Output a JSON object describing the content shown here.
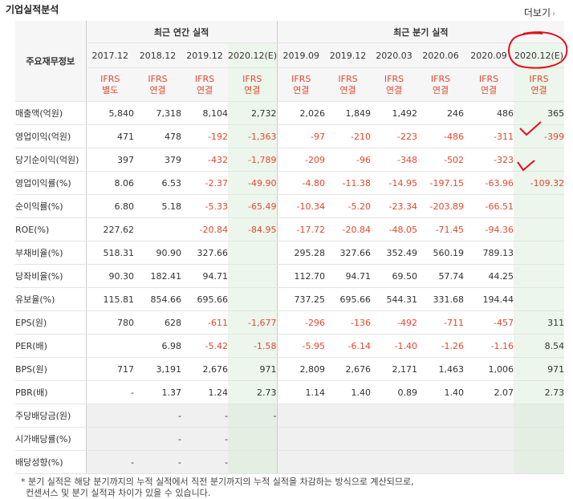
{
  "header": {
    "title": "기업실적분석",
    "more_label": "더보기"
  },
  "table": {
    "row_header": "주요재무정보",
    "group_annual": "최근 연간 실적",
    "group_quarter": "최근 분기 실적",
    "periods": [
      "2017.12",
      "2018.12",
      "2019.12",
      "2020.12(E)",
      "2019.09",
      "2019.12",
      "2020.03",
      "2020.06",
      "2020.09",
      "2020.12(E)"
    ],
    "standards": [
      [
        "IFRS",
        "별도"
      ],
      [
        "IFRS",
        "연결"
      ],
      [
        "IFRS",
        "연결"
      ],
      [
        "IFRS",
        "연결"
      ],
      [
        "IFRS",
        "연결"
      ],
      [
        "IFRS",
        "연결"
      ],
      [
        "IFRS",
        "연결"
      ],
      [
        "IFRS",
        "연결"
      ],
      [
        "IFRS",
        "연결"
      ],
      [
        "IFRS",
        "연결"
      ]
    ],
    "rows": [
      {
        "label": "매출액(억원)",
        "values": [
          "5,840",
          "7,318",
          "8,104",
          "2,732",
          "2,026",
          "1,849",
          "1,492",
          "246",
          "486",
          "365"
        ]
      },
      {
        "label": "영업이익(억원)",
        "values": [
          "471",
          "478",
          "-192",
          "-1,363",
          "-97",
          "-210",
          "-223",
          "-486",
          "-311",
          "-399"
        ]
      },
      {
        "label": "당기순이익(억원)",
        "values": [
          "397",
          "379",
          "-432",
          "-1,789",
          "-209",
          "-96",
          "-348",
          "-502",
          "-323",
          ""
        ]
      },
      {
        "label": "영업이익률(%)",
        "values": [
          "8.06",
          "6.53",
          "-2.37",
          "-49.90",
          "-4.80",
          "-11.38",
          "-14.95",
          "-197.15",
          "-63.96",
          "-109.32"
        ]
      },
      {
        "label": "순이익률(%)",
        "values": [
          "6.80",
          "5.18",
          "-5.33",
          "-65.49",
          "-10.34",
          "-5.20",
          "-23.34",
          "-203.89",
          "-66.51",
          ""
        ]
      },
      {
        "label": "ROE(%)",
        "values": [
          "227.62",
          "",
          "-20.84",
          "-84.95",
          "-17.72",
          "-20.84",
          "-48.05",
          "-71.45",
          "-94.36",
          ""
        ]
      },
      {
        "label": "부채비율(%)",
        "values": [
          "518.31",
          "90.90",
          "327.66",
          "",
          "295.28",
          "327.66",
          "352.49",
          "560.19",
          "789.13",
          ""
        ]
      },
      {
        "label": "당좌비율(%)",
        "values": [
          "90.30",
          "182.41",
          "94.71",
          "",
          "112.70",
          "94.71",
          "69.50",
          "57.74",
          "44.25",
          ""
        ]
      },
      {
        "label": "유보율(%)",
        "values": [
          "115.81",
          "854.66",
          "695.66",
          "",
          "737.25",
          "695.66",
          "544.31",
          "331.68",
          "194.44",
          ""
        ]
      },
      {
        "label": "EPS(원)",
        "values": [
          "780",
          "628",
          "-611",
          "-1,677",
          "-296",
          "-136",
          "-492",
          "-711",
          "-457",
          "311"
        ]
      },
      {
        "label": "PER(배)",
        "values": [
          "",
          "6.98",
          "-5.42",
          "-1.58",
          "-5.95",
          "-6.14",
          "-1.40",
          "-1.26",
          "-1.16",
          "8.54"
        ]
      },
      {
        "label": "BPS(원)",
        "values": [
          "717",
          "3,191",
          "2,676",
          "971",
          "2,809",
          "2,676",
          "2,171",
          "1,463",
          "1,006",
          "971"
        ]
      },
      {
        "label": "PBR(배)",
        "values": [
          "-",
          "1.37",
          "1.24",
          "2.73",
          "1.14",
          "1.40",
          "0.89",
          "1.40",
          "2.07",
          "2.73"
        ]
      },
      {
        "label": "주당배당금(원)",
        "values": [
          "",
          "-",
          "-",
          "-",
          "",
          "",
          "",
          "",
          "",
          ""
        ]
      },
      {
        "label": "시가배당률(%)",
        "values": [
          "",
          "-",
          "-",
          "",
          "",
          "",
          "",
          "",
          "",
          ""
        ]
      },
      {
        "label": "배당성향(%)",
        "values": [
          "-",
          "-",
          "-",
          "",
          "",
          "",
          "",
          "",
          "",
          ""
        ]
      }
    ]
  },
  "note": {
    "line1": "* 분기 실적은 해당 분기까지의 누적 실적에서 직전 분기까지의 누적 실적을 차감하는 방식으로 계산되므로,",
    "line2": "  컨센서스 및 분기 실적과 차이가 있을 수 있습니다."
  },
  "annotation_color": "#e0101a"
}
